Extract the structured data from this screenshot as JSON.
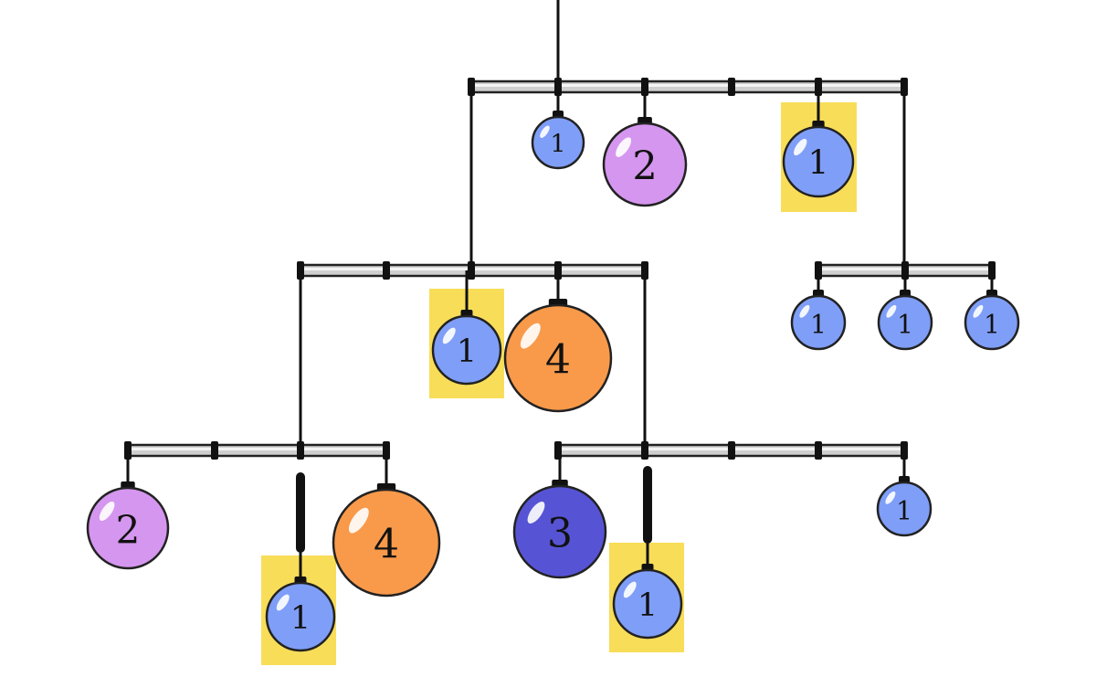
{
  "colors": {
    "weight_1": "#7f9ef7",
    "weight_2": "#d596ef",
    "weight_3": "#5654d4",
    "weight_4": "#f89a4a",
    "highlight": "#f8dd58"
  },
  "rods": [
    {
      "id": "rod-top"
    },
    {
      "id": "rod-mid-left"
    },
    {
      "id": "rod-mid-right"
    },
    {
      "id": "rod-bottom-left"
    },
    {
      "id": "rod-bottom-right"
    }
  ],
  "weights": [
    {
      "id": "w1",
      "label": "1",
      "value": 1,
      "highlighted": false
    },
    {
      "id": "w2",
      "label": "2",
      "value": 2,
      "highlighted": false
    },
    {
      "id": "w3",
      "label": "1",
      "value": 1,
      "highlighted": true
    },
    {
      "id": "w4",
      "label": "1",
      "value": 1,
      "highlighted": true
    },
    {
      "id": "w5",
      "label": "4",
      "value": 4,
      "highlighted": false
    },
    {
      "id": "w6",
      "label": "1",
      "value": 1,
      "highlighted": false
    },
    {
      "id": "w7",
      "label": "1",
      "value": 1,
      "highlighted": false
    },
    {
      "id": "w8",
      "label": "1",
      "value": 1,
      "highlighted": false
    },
    {
      "id": "w9",
      "label": "2",
      "value": 2,
      "highlighted": false
    },
    {
      "id": "w10",
      "label": "1",
      "value": 1,
      "highlighted": true
    },
    {
      "id": "w11",
      "label": "4",
      "value": 4,
      "highlighted": false
    },
    {
      "id": "w12",
      "label": "3",
      "value": 3,
      "highlighted": false
    },
    {
      "id": "w13",
      "label": "1",
      "value": 1,
      "highlighted": true
    },
    {
      "id": "w14",
      "label": "1",
      "value": 1,
      "highlighted": false
    }
  ]
}
